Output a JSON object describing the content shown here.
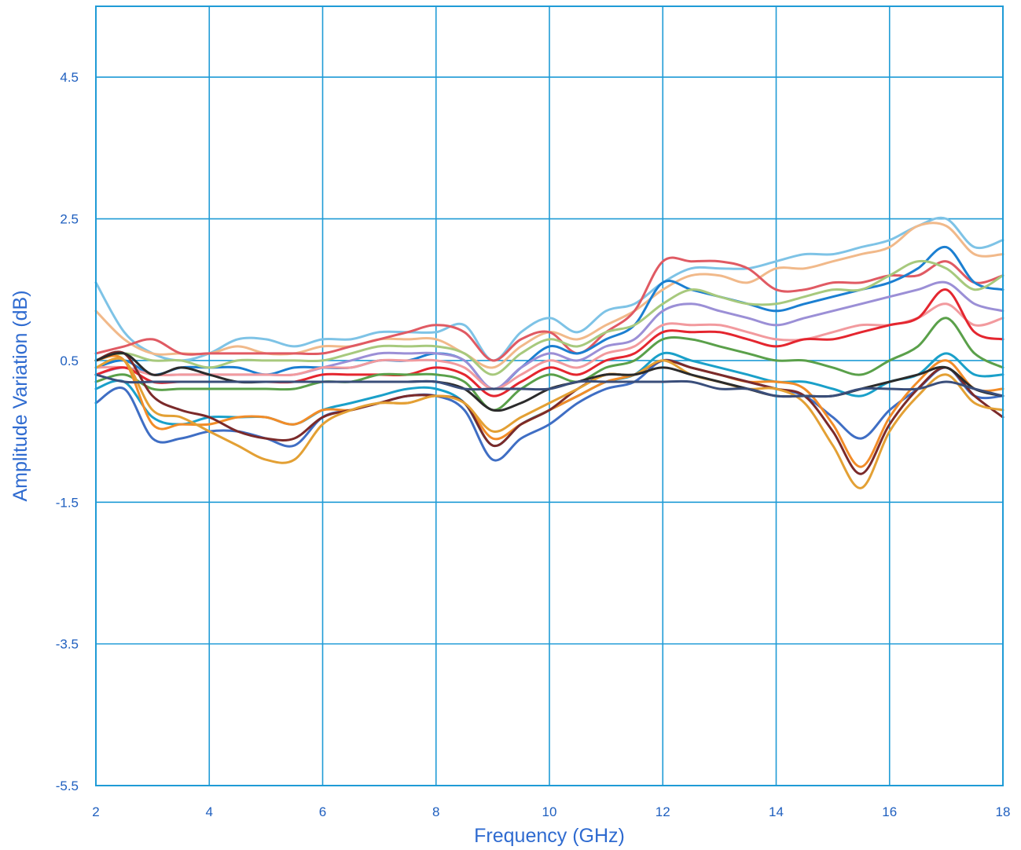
{
  "chart_data": {
    "type": "line",
    "title": "",
    "xlabel": "Frequency (GHz)",
    "ylabel": "Amplitude Variation (dB)",
    "xlim": [
      2,
      18
    ],
    "ylim": [
      -5.5,
      5.5
    ],
    "x_ticks": [
      2,
      4,
      6,
      8,
      10,
      12,
      14,
      16,
      18
    ],
    "y_ticks": [
      -5.5,
      -3.5,
      -1.5,
      0.5,
      2.5,
      4.5
    ],
    "x_tick_labels": [
      "2",
      "4",
      "6",
      "8",
      "10",
      "12",
      "14",
      "16",
      "18"
    ],
    "y_tick_labels": [
      "-5.5",
      "-3.5",
      "-1.5",
      "0.5",
      "2.5",
      "4.5"
    ],
    "grid": true,
    "legend": "none",
    "x": [
      2,
      2.5,
      3,
      3.5,
      4,
      4.5,
      5,
      5.5,
      6,
      6.5,
      7,
      7.5,
      8,
      8.5,
      9,
      9.5,
      10,
      10.5,
      11,
      11.5,
      12,
      12.5,
      13,
      13.5,
      14,
      14.5,
      15,
      15.5,
      16,
      16.5,
      17,
      17.5,
      18
    ],
    "series": [
      {
        "color": "#7ec3e6",
        "values": [
          1.6,
          0.9,
          0.6,
          0.5,
          0.6,
          0.8,
          0.8,
          0.7,
          0.8,
          0.8,
          0.9,
          0.9,
          0.9,
          1.0,
          0.5,
          0.9,
          1.1,
          0.9,
          1.2,
          1.3,
          1.6,
          1.8,
          1.8,
          1.8,
          1.9,
          2.0,
          2.0,
          2.1,
          2.2,
          2.4,
          2.5,
          2.1,
          2.2
        ]
      },
      {
        "color": "#f1b98a",
        "values": [
          1.2,
          0.8,
          0.6,
          0.6,
          0.6,
          0.7,
          0.6,
          0.6,
          0.7,
          0.7,
          0.8,
          0.8,
          0.8,
          0.6,
          0.4,
          0.7,
          0.9,
          0.8,
          1.0,
          1.2,
          1.5,
          1.7,
          1.7,
          1.6,
          1.8,
          1.8,
          1.9,
          2.0,
          2.1,
          2.4,
          2.4,
          2.0,
          2.0
        ]
      },
      {
        "color": "#e05a63",
        "values": [
          0.6,
          0.7,
          0.8,
          0.6,
          0.6,
          0.6,
          0.6,
          0.6,
          0.6,
          0.7,
          0.8,
          0.9,
          1.0,
          0.9,
          0.5,
          0.8,
          0.9,
          0.6,
          0.9,
          1.2,
          1.9,
          1.9,
          1.9,
          1.8,
          1.5,
          1.5,
          1.6,
          1.6,
          1.7,
          1.7,
          1.9,
          1.6,
          1.7
        ]
      },
      {
        "color": "#1b7fd1",
        "values": [
          0.4,
          0.5,
          0.3,
          0.4,
          0.4,
          0.4,
          0.3,
          0.4,
          0.4,
          0.4,
          0.5,
          0.5,
          0.6,
          0.5,
          0.1,
          0.4,
          0.7,
          0.6,
          0.8,
          1.0,
          1.6,
          1.5,
          1.4,
          1.3,
          1.2,
          1.3,
          1.4,
          1.5,
          1.6,
          1.8,
          2.1,
          1.6,
          1.5
        ]
      },
      {
        "color": "#a7c97d",
        "values": [
          0.5,
          0.6,
          0.5,
          0.5,
          0.4,
          0.5,
          0.5,
          0.5,
          0.5,
          0.6,
          0.7,
          0.7,
          0.7,
          0.6,
          0.3,
          0.6,
          0.8,
          0.7,
          0.9,
          1.0,
          1.3,
          1.5,
          1.4,
          1.3,
          1.3,
          1.4,
          1.5,
          1.5,
          1.7,
          1.9,
          1.8,
          1.5,
          1.7
        ]
      },
      {
        "color": "#9b8fd6",
        "values": [
          0.3,
          0.4,
          0.3,
          0.3,
          0.3,
          0.3,
          0.3,
          0.3,
          0.4,
          0.5,
          0.6,
          0.6,
          0.6,
          0.5,
          0.1,
          0.4,
          0.6,
          0.5,
          0.7,
          0.8,
          1.2,
          1.3,
          1.2,
          1.1,
          1.0,
          1.1,
          1.2,
          1.3,
          1.4,
          1.5,
          1.6,
          1.3,
          1.2
        ]
      },
      {
        "color": "#f29a9e",
        "values": [
          0.4,
          0.4,
          0.3,
          0.3,
          0.3,
          0.3,
          0.3,
          0.3,
          0.4,
          0.4,
          0.5,
          0.5,
          0.5,
          0.4,
          0.1,
          0.3,
          0.5,
          0.4,
          0.6,
          0.7,
          1.0,
          1.0,
          1.0,
          0.9,
          0.8,
          0.8,
          0.9,
          1.0,
          1.0,
          1.1,
          1.3,
          1.0,
          1.1
        ]
      },
      {
        "color": "#e4262f",
        "values": [
          0.3,
          0.4,
          0.2,
          0.2,
          0.2,
          0.2,
          0.2,
          0.2,
          0.3,
          0.3,
          0.3,
          0.3,
          0.4,
          0.3,
          0.0,
          0.2,
          0.4,
          0.3,
          0.5,
          0.6,
          0.9,
          0.9,
          0.9,
          0.8,
          0.7,
          0.8,
          0.8,
          0.9,
          1.0,
          1.1,
          1.5,
          0.9,
          0.8
        ]
      },
      {
        "color": "#5aa04a",
        "values": [
          0.2,
          0.3,
          0.1,
          0.1,
          0.1,
          0.1,
          0.1,
          0.1,
          0.2,
          0.2,
          0.3,
          0.3,
          0.3,
          0.2,
          -0.2,
          0.1,
          0.3,
          0.2,
          0.4,
          0.5,
          0.8,
          0.8,
          0.7,
          0.6,
          0.5,
          0.5,
          0.4,
          0.3,
          0.5,
          0.7,
          1.1,
          0.6,
          0.4
        ]
      },
      {
        "color": "#1aa0c9",
        "values": [
          0.1,
          0.2,
          -0.3,
          -0.4,
          -0.3,
          -0.3,
          -0.3,
          -0.4,
          -0.2,
          -0.1,
          0.0,
          0.1,
          0.1,
          -0.1,
          -0.7,
          -0.4,
          -0.2,
          0.0,
          0.2,
          0.3,
          0.6,
          0.5,
          0.4,
          0.3,
          0.2,
          0.2,
          0.1,
          0.0,
          0.2,
          0.3,
          0.6,
          0.3,
          0.3
        ]
      },
      {
        "color": "#3f6ec4",
        "values": [
          -0.1,
          0.1,
          -0.6,
          -0.6,
          -0.5,
          -0.5,
          -0.6,
          -0.7,
          -0.3,
          -0.2,
          -0.1,
          0.0,
          0.0,
          -0.2,
          -0.9,
          -0.6,
          -0.4,
          -0.1,
          0.1,
          0.2,
          0.5,
          0.4,
          0.3,
          0.2,
          0.1,
          0.0,
          -0.3,
          -0.6,
          -0.2,
          0.1,
          0.4,
          0.0,
          0.0
        ]
      },
      {
        "color": "#f28c28",
        "values": [
          0.5,
          0.5,
          -0.4,
          -0.4,
          -0.4,
          -0.3,
          -0.3,
          -0.4,
          -0.2,
          -0.2,
          -0.1,
          -0.1,
          0.0,
          -0.1,
          -0.6,
          -0.4,
          -0.2,
          0.0,
          0.2,
          0.3,
          0.5,
          0.4,
          0.3,
          0.2,
          0.2,
          0.1,
          -0.4,
          -1.0,
          -0.3,
          0.2,
          0.5,
          0.1,
          0.1
        ]
      },
      {
        "color": "#7b2a2a",
        "values": [
          0.5,
          0.6,
          0.0,
          -0.2,
          -0.3,
          -0.5,
          -0.6,
          -0.6,
          -0.3,
          -0.2,
          -0.1,
          0.0,
          0.0,
          -0.1,
          -0.7,
          -0.4,
          -0.2,
          0.1,
          0.3,
          0.3,
          0.5,
          0.4,
          0.3,
          0.2,
          0.1,
          0.0,
          -0.5,
          -1.1,
          -0.4,
          0.1,
          0.4,
          0.0,
          -0.3
        ]
      },
      {
        "color": "#e3a034",
        "values": [
          0.4,
          0.5,
          -0.2,
          -0.3,
          -0.5,
          -0.7,
          -0.9,
          -0.9,
          -0.4,
          -0.2,
          -0.1,
          -0.1,
          0.0,
          -0.1,
          -0.5,
          -0.3,
          -0.1,
          0.1,
          0.3,
          0.3,
          0.5,
          0.3,
          0.2,
          0.1,
          0.1,
          -0.1,
          -0.7,
          -1.3,
          -0.5,
          0.0,
          0.3,
          -0.1,
          -0.2
        ]
      },
      {
        "color": "#2b2b2b",
        "values": [
          0.5,
          0.6,
          0.3,
          0.4,
          0.3,
          0.2,
          0.2,
          0.2,
          0.2,
          0.2,
          0.2,
          0.2,
          0.2,
          0.1,
          -0.2,
          -0.1,
          0.1,
          0.2,
          0.3,
          0.3,
          0.4,
          0.3,
          0.2,
          0.1,
          0.0,
          0.0,
          0.0,
          0.1,
          0.2,
          0.3,
          0.4,
          0.1,
          0.0
        ]
      },
      {
        "color": "#3a4e7a",
        "values": [
          0.3,
          0.2,
          0.2,
          0.2,
          0.2,
          0.2,
          0.2,
          0.2,
          0.2,
          0.2,
          0.2,
          0.2,
          0.2,
          0.1,
          0.1,
          0.1,
          0.1,
          0.2,
          0.2,
          0.2,
          0.2,
          0.2,
          0.1,
          0.1,
          0.0,
          0.0,
          0.0,
          0.1,
          0.1,
          0.1,
          0.2,
          0.1,
          0.0
        ]
      }
    ]
  }
}
